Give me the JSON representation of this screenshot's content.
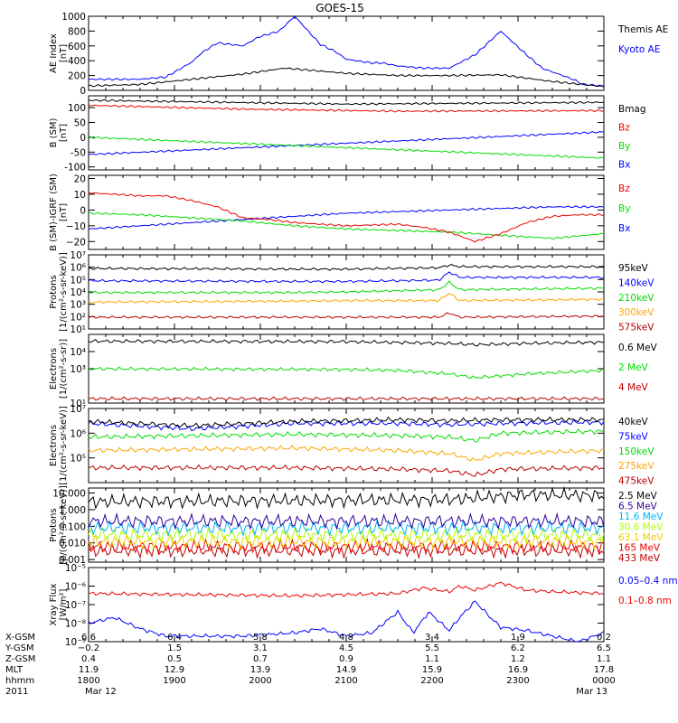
{
  "title": "GOES-15",
  "colors": {
    "axis": "#000000",
    "blue": "#0000ff",
    "green": "#00dd00",
    "red": "#ee0000",
    "darkred": "#bb0000",
    "orange": "#ffa500",
    "black": "#000000",
    "purple": "#330099",
    "cyan": "#00b4ff",
    "yellowgreen": "#aaff00",
    "gold": "#f0d000"
  },
  "chart_data": [
    {
      "type": "line",
      "panel": "ae",
      "ylabel_lines": [
        "AE Index",
        "[nT]"
      ],
      "yscale": "linear",
      "ylim": [
        0,
        1000
      ],
      "yticks": [
        0,
        200,
        400,
        600,
        800,
        1000
      ],
      "ytick_labels": [
        "0",
        "200",
        "400",
        "600",
        "800",
        "1000"
      ],
      "series": [
        {
          "name": "Kyoto AE",
          "color": "blue",
          "x": [
            0,
            5,
            10,
            15,
            20,
            22,
            25,
            30,
            33,
            37,
            40,
            45,
            48,
            50,
            55,
            57,
            60,
            65,
            70,
            75,
            80,
            85,
            88,
            90,
            94,
            96,
            100
          ],
          "values": [
            150,
            150,
            150,
            180,
            380,
            510,
            640,
            600,
            720,
            800,
            1000,
            620,
            520,
            420,
            370,
            370,
            330,
            300,
            300,
            480,
            800,
            480,
            300,
            250,
            150,
            80,
            60
          ]
        },
        {
          "name": "Themis AE",
          "color": "black",
          "x": [
            0,
            10,
            20,
            30,
            38,
            45,
            50,
            60,
            70,
            80,
            90,
            100
          ],
          "values": [
            60,
            80,
            150,
            220,
            300,
            260,
            230,
            200,
            200,
            210,
            120,
            50
          ]
        }
      ]
    },
    {
      "type": "line",
      "panel": "bsm",
      "ylabel_lines": [
        "B (SM)",
        "[nT]"
      ],
      "yscale": "linear",
      "ylim": [
        -110,
        140
      ],
      "yticks": [
        -100,
        -50,
        0,
        50,
        100
      ],
      "ytick_labels": [
        "-100",
        "-50",
        "0",
        "50",
        "100"
      ],
      "series": [
        {
          "name": "Bx",
          "color": "blue",
          "x": [
            0,
            100
          ],
          "values": [
            -58,
            18
          ]
        },
        {
          "name": "By",
          "color": "green",
          "x": [
            0,
            100
          ],
          "values": [
            0,
            -70
          ]
        },
        {
          "name": "Bz",
          "color": "red",
          "x": [
            0,
            30,
            60,
            100
          ],
          "values": [
            108,
            95,
            88,
            90
          ]
        },
        {
          "name": "Bmag",
          "color": "black",
          "x": [
            0,
            50,
            100
          ],
          "values": [
            125,
            112,
            118
          ]
        }
      ]
    },
    {
      "type": "line",
      "panel": "bigrf",
      "ylabel_lines": [
        "B (SM)-IGRF (SM)",
        "[nT]"
      ],
      "yscale": "linear",
      "ylim": [
        -25,
        22
      ],
      "yticks": [
        -20,
        -10,
        0,
        10,
        20
      ],
      "ytick_labels": [
        "−20",
        "−10",
        "0",
        "10",
        "20"
      ],
      "series": [
        {
          "name": "Bx",
          "color": "blue",
          "x": [
            0,
            10,
            20,
            30,
            40,
            50,
            60,
            70,
            80,
            90,
            100
          ],
          "values": [
            -12,
            -10,
            -8,
            -6,
            -4,
            -2,
            -1,
            0,
            1,
            2,
            2
          ]
        },
        {
          "name": "By",
          "color": "green",
          "x": [
            0,
            10,
            20,
            30,
            40,
            50,
            60,
            70,
            80,
            90,
            100
          ],
          "values": [
            -2,
            -3,
            -5,
            -7,
            -10,
            -12,
            -13,
            -14,
            -16,
            -18,
            -15
          ]
        },
        {
          "name": "Bz",
          "color": "red",
          "x": [
            0,
            10,
            15,
            20,
            25,
            30,
            35,
            40,
            50,
            60,
            65,
            70,
            75,
            80,
            85,
            90,
            95,
            100
          ],
          "values": [
            11,
            9,
            9,
            6,
            2,
            -5,
            -6,
            -8,
            -10,
            -9,
            -11,
            -14,
            -20,
            -15,
            -8,
            -4,
            -3,
            -3
          ]
        }
      ]
    },
    {
      "type": "line",
      "panel": "protons1",
      "ylabel_lines": [
        "Protons",
        "[1/(cm²-s-sr-keV)]"
      ],
      "yscale": "log",
      "ylim": [
        10,
        10000000
      ],
      "yticks": [
        10,
        100,
        1000,
        10000,
        100000,
        1000000,
        10000000
      ],
      "ytick_labels": [
        "10¹",
        "10²",
        "10³",
        "10⁴",
        "10⁵",
        "10⁶",
        "10⁷"
      ],
      "series": [
        {
          "name": "575keV",
          "color": "darkred",
          "x": [
            0,
            50,
            68,
            70,
            72,
            100
          ],
          "values": [
            90,
            90,
            90,
            200,
            90,
            110
          ]
        },
        {
          "name": "300keV",
          "color": "orange",
          "x": [
            0,
            40,
            50,
            68,
            70,
            72,
            100
          ],
          "values": [
            1500,
            1800,
            2000,
            2000,
            8000,
            2000,
            2500
          ]
        },
        {
          "name": "210keV",
          "color": "green",
          "x": [
            0,
            40,
            50,
            68,
            70,
            72,
            100
          ],
          "values": [
            9000,
            9000,
            10000,
            15000,
            60000,
            15000,
            20000
          ]
        },
        {
          "name": "140keV",
          "color": "blue",
          "x": [
            0,
            40,
            50,
            68,
            70,
            72,
            100
          ],
          "values": [
            80000,
            70000,
            70000,
            90000,
            400000,
            150000,
            150000
          ]
        },
        {
          "name": "95keV",
          "color": "black",
          "x": [
            0,
            40,
            50,
            68,
            70,
            72,
            100
          ],
          "values": [
            800000,
            700000,
            700000,
            900000,
            1500000,
            1100000,
            1100000
          ]
        }
      ]
    },
    {
      "type": "line",
      "panel": "electrons1",
      "ylabel_lines": [
        "Electrons",
        "[1/(cm²-s-sr)]"
      ],
      "yscale": "log",
      "ylim": [
        10,
        100000
      ],
      "yticks": [
        10,
        1000,
        10000
      ],
      "ytick_labels": [
        "10¹",
        "10³",
        "10⁴"
      ],
      "series": [
        {
          "name": "4 MeV",
          "color": "darkred",
          "x": [
            0,
            100
          ],
          "values": [
            18,
            18
          ]
        },
        {
          "name": "2 MeV",
          "color": "green",
          "x": [
            0,
            50,
            60,
            70,
            75,
            85,
            100
          ],
          "values": [
            1000,
            900,
            800,
            500,
            300,
            500,
            800
          ]
        },
        {
          "name": "0.6 MeV",
          "color": "black",
          "x": [
            0,
            50,
            70,
            75,
            85,
            100
          ],
          "values": [
            40000,
            38000,
            30000,
            25000,
            30000,
            35000
          ]
        }
      ]
    },
    {
      "type": "line",
      "panel": "electrons2",
      "ylabel_lines": [
        "Electrons",
        "[1/(cm²-s-sr-keV)]"
      ],
      "yscale": "log",
      "ylim": [
        10000,
        10000000
      ],
      "yticks": [
        100000,
        1000000,
        10000000
      ],
      "ytick_labels": [
        "10⁵",
        "10⁶",
        "10⁷"
      ],
      "series": [
        {
          "name": "475keV",
          "color": "darkred",
          "x": [
            0,
            40,
            60,
            70,
            75,
            80,
            100
          ],
          "values": [
            40000,
            40000,
            35000,
            30000,
            20000,
            35000,
            40000
          ]
        },
        {
          "name": "275keV",
          "color": "orange",
          "x": [
            0,
            40,
            60,
            70,
            75,
            80,
            100
          ],
          "values": [
            200000,
            250000,
            200000,
            150000,
            80000,
            150000,
            200000
          ]
        },
        {
          "name": "150keV",
          "color": "green",
          "x": [
            0,
            40,
            60,
            70,
            75,
            80,
            100
          ],
          "values": [
            700000,
            900000,
            800000,
            700000,
            500000,
            1000000,
            1200000
          ]
        },
        {
          "name": "75keV",
          "color": "blue",
          "x": [
            0,
            20,
            40,
            60,
            70,
            80,
            100
          ],
          "values": [
            2500000,
            1500000,
            2500000,
            2500000,
            2200000,
            2500000,
            2800000
          ]
        },
        {
          "name": "40keV",
          "color": "black",
          "x": [
            0,
            20,
            40,
            60,
            70,
            80,
            100
          ],
          "values": [
            3000000,
            2000000,
            3000000,
            3500000,
            3200000,
            3500000,
            3500000
          ]
        }
      ]
    },
    {
      "type": "line",
      "panel": "protons2",
      "ylabel_lines": [
        "Protons",
        "[p/(cm²-s-sr-keV)]"
      ],
      "yscale": "log",
      "ylim": [
        0.0007,
        20
      ],
      "yticks": [
        0.001,
        0.01,
        0.1,
        1,
        10
      ],
      "ytick_labels": [
        "0.001",
        "0.010",
        "0.100",
        "1.000",
        "10.000"
      ],
      "series": [
        {
          "name": "433 MeV",
          "color": "darkred",
          "x": [
            0,
            100
          ],
          "values": [
            0.0035,
            0.0035
          ]
        },
        {
          "name": "165 MeV",
          "color": "red",
          "x": [
            0,
            100
          ],
          "values": [
            0.006,
            0.006
          ]
        },
        {
          "name": "63.1 MeV",
          "color": "gold",
          "x": [
            0,
            100
          ],
          "values": [
            0.012,
            0.012
          ]
        },
        {
          "name": "30.6 MeV",
          "color": "yellowgreen",
          "x": [
            0,
            100
          ],
          "values": [
            0.03,
            0.03
          ]
        },
        {
          "name": "11.6 MeV",
          "color": "cyan",
          "x": [
            0,
            100
          ],
          "values": [
            0.08,
            0.08
          ]
        },
        {
          "name": "6.5 MeV",
          "color": "purple",
          "x": [
            0,
            100
          ],
          "values": [
            0.2,
            0.2
          ]
        },
        {
          "name": "2.5 MeV",
          "color": "black",
          "x": [
            0,
            70,
            85,
            100
          ],
          "values": [
            3,
            4,
            8,
            7
          ]
        }
      ]
    },
    {
      "type": "line",
      "panel": "xray",
      "ylabel_lines": [
        "Xray Flux",
        "[W/m²]"
      ],
      "yscale": "log",
      "ylim": [
        1e-09,
        1e-05
      ],
      "yticks": [
        1e-09,
        1e-08,
        1e-07,
        1e-06,
        1e-05
      ],
      "ytick_labels": [
        "10⁻⁹",
        "10⁻⁸",
        "10⁻⁷",
        "10⁻⁶",
        "10⁻⁵"
      ],
      "series": [
        {
          "name": "0.1–0.8 nm",
          "color": "red",
          "x": [
            0,
            40,
            60,
            65,
            70,
            72,
            75,
            80,
            85,
            90,
            100
          ],
          "values": [
            4e-07,
            3e-07,
            4e-07,
            8e-07,
            5e-07,
            1e-06,
            6e-07,
            1.5e-06,
            6e-07,
            5e-07,
            4e-07
          ]
        },
        {
          "name": "0.05–0.4 nm",
          "color": "blue",
          "x": [
            0,
            5,
            10,
            15,
            20,
            30,
            40,
            45,
            50,
            55,
            60,
            63,
            66,
            70,
            72,
            75,
            78,
            80,
            85,
            90,
            95,
            100
          ],
          "values": [
            1e-08,
            2e-08,
            5e-09,
            2e-09,
            2e-09,
            2e-09,
            3e-09,
            5e-09,
            2e-09,
            3e-09,
            4e-08,
            3e-09,
            4e-08,
            4e-09,
            2e-08,
            1.5e-07,
            2e-08,
            6e-09,
            4e-09,
            2e-09,
            1e-09,
            3e-09
          ]
        }
      ]
    }
  ],
  "xaxis": {
    "row_labels": [
      "X-GSM",
      "Y-GSM",
      "Z-GSM",
      "MLT",
      "hhmm",
      "2011"
    ],
    "columns": [
      {
        "x": 0,
        "values": [
          "6.6",
          "−0.2",
          "0.4",
          "11.9",
          "1800",
          "Mar 12"
        ]
      },
      {
        "x": 16.67,
        "values": [
          "6.4",
          "1.5",
          "0.5",
          "12.9",
          "1900",
          ""
        ]
      },
      {
        "x": 33.33,
        "values": [
          "5.8",
          "3.1",
          "0.7",
          "13.9",
          "2000",
          ""
        ]
      },
      {
        "x": 50,
        "values": [
          "4.8",
          "4.5",
          "0.9",
          "14.9",
          "2100",
          ""
        ]
      },
      {
        "x": 66.67,
        "values": [
          "3.4",
          "5.5",
          "1.1",
          "15.9",
          "2200",
          ""
        ]
      },
      {
        "x": 83.33,
        "values": [
          "1.9",
          "6.2",
          "1.2",
          "16.9",
          "2300",
          ""
        ]
      },
      {
        "x": 100,
        "values": [
          "0.2",
          "6.5",
          "1.1",
          "17.8",
          "0000",
          "Mar 13"
        ]
      }
    ]
  }
}
